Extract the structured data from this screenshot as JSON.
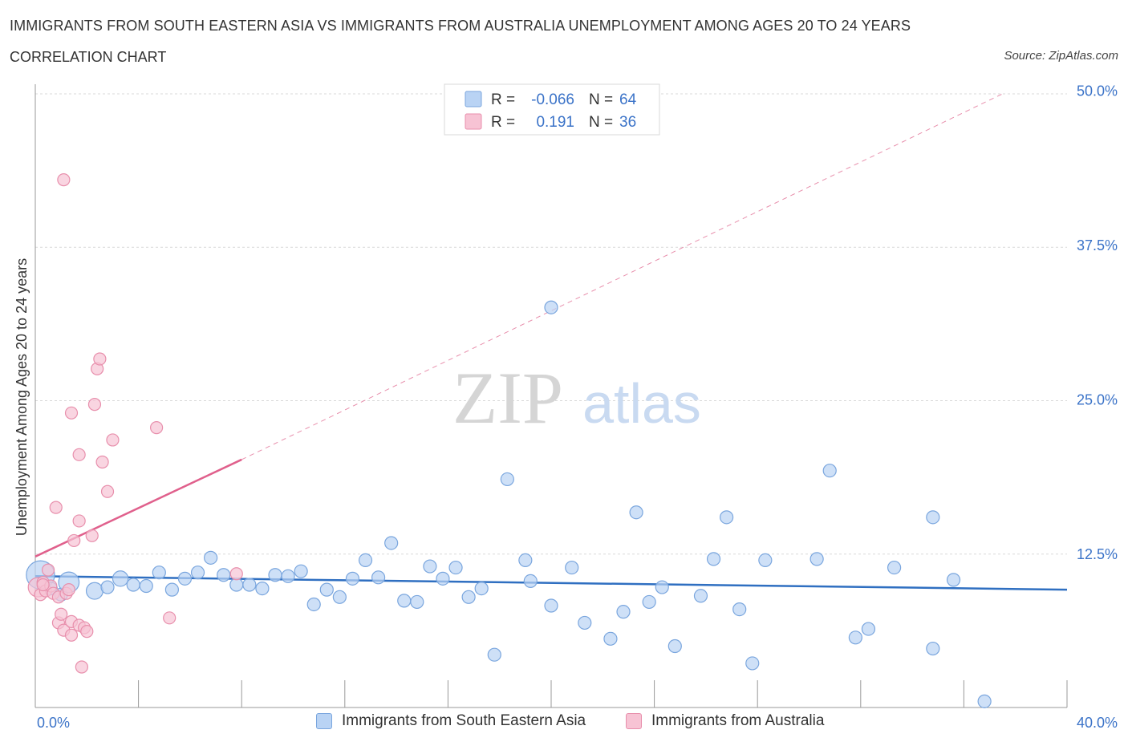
{
  "header": {
    "title": "IMMIGRANTS FROM SOUTH EASTERN ASIA VS IMMIGRANTS FROM AUSTRALIA UNEMPLOYMENT AMONG AGES 20 TO 24 YEARS",
    "subtitle": "CORRELATION CHART",
    "source": "Source: ZipAtlas.com"
  },
  "watermark": {
    "zip": "ZIP",
    "atlas": "atlas"
  },
  "stats_legend": {
    "rows": [
      {
        "r_label": "R =",
        "r_value": "-0.066",
        "n_label": "N =",
        "n_value": "64"
      },
      {
        "r_label": "R =",
        "r_value": "0.191",
        "n_label": "N =",
        "n_value": "36"
      }
    ]
  },
  "colors": {
    "blue_fill": "#b9d3f4",
    "blue_stroke": "#7aa6de",
    "blue_line": "#2f6fc1",
    "pink_fill": "#f7c3d4",
    "pink_stroke": "#e88fac",
    "pink_line": "#e0608c",
    "accent_text": "#3b73c8",
    "grid": "#d9d9d9",
    "axis": "#999999"
  },
  "chart_data": {
    "type": "scatter",
    "title": "IMMIGRANTS FROM SOUTH EASTERN ASIA VS IMMIGRANTS FROM AUSTRALIA UNEMPLOYMENT AMONG AGES 20 TO 24 YEARS",
    "xlabel": "",
    "ylabel": "Unemployment Among Ages 20 to 24 years",
    "xlim": [
      0,
      40
    ],
    "ylim": [
      0,
      50
    ],
    "x_tick_labels": [
      "0.0%",
      "40.0%"
    ],
    "y_ticks": [
      12.5,
      25.0,
      37.5,
      50.0
    ],
    "y_tick_labels": [
      "12.5%",
      "25.0%",
      "37.5%",
      "50.0%"
    ],
    "grid": true,
    "series": [
      {
        "name": "Immigrants from South Eastern Asia",
        "color": "#b9d3f4",
        "R": -0.066,
        "N": 64,
        "trend": {
          "x": [
            0,
            40
          ],
          "y": [
            10.7,
            9.6
          ],
          "dashed_extension": false
        },
        "points": [
          {
            "x": 0.2,
            "y": 10.8,
            "s": 2.2
          },
          {
            "x": 0.6,
            "y": 9.7
          },
          {
            "x": 1.0,
            "y": 9.2
          },
          {
            "x": 1.3,
            "y": 10.2,
            "s": 1.6
          },
          {
            "x": 2.3,
            "y": 9.5,
            "s": 1.3
          },
          {
            "x": 2.8,
            "y": 9.8
          },
          {
            "x": 3.3,
            "y": 10.5,
            "s": 1.2
          },
          {
            "x": 3.8,
            "y": 10.0
          },
          {
            "x": 4.3,
            "y": 9.9
          },
          {
            "x": 4.8,
            "y": 11.0
          },
          {
            "x": 5.3,
            "y": 9.6
          },
          {
            "x": 5.8,
            "y": 10.5
          },
          {
            "x": 6.3,
            "y": 11.0
          },
          {
            "x": 6.8,
            "y": 12.2
          },
          {
            "x": 7.3,
            "y": 10.8
          },
          {
            "x": 7.8,
            "y": 10.0
          },
          {
            "x": 8.3,
            "y": 10.0
          },
          {
            "x": 8.8,
            "y": 9.7
          },
          {
            "x": 9.3,
            "y": 10.8
          },
          {
            "x": 9.8,
            "y": 10.7
          },
          {
            "x": 10.3,
            "y": 11.1
          },
          {
            "x": 10.8,
            "y": 8.4
          },
          {
            "x": 11.3,
            "y": 9.6
          },
          {
            "x": 11.8,
            "y": 9.0
          },
          {
            "x": 12.3,
            "y": 10.5
          },
          {
            "x": 12.8,
            "y": 12.0
          },
          {
            "x": 13.3,
            "y": 10.6
          },
          {
            "x": 13.8,
            "y": 13.4
          },
          {
            "x": 14.3,
            "y": 8.7
          },
          {
            "x": 14.8,
            "y": 8.6
          },
          {
            "x": 15.3,
            "y": 11.5
          },
          {
            "x": 15.8,
            "y": 10.5
          },
          {
            "x": 16.3,
            "y": 11.4
          },
          {
            "x": 16.8,
            "y": 9.0
          },
          {
            "x": 17.3,
            "y": 9.7
          },
          {
            "x": 17.8,
            "y": 4.3
          },
          {
            "x": 18.3,
            "y": 18.6
          },
          {
            "x": 19.0,
            "y": 12.0
          },
          {
            "x": 19.2,
            "y": 10.3
          },
          {
            "x": 20.0,
            "y": 32.6
          },
          {
            "x": 20.0,
            "y": 8.3
          },
          {
            "x": 20.8,
            "y": 11.4
          },
          {
            "x": 21.3,
            "y": 6.9
          },
          {
            "x": 22.3,
            "y": 5.6
          },
          {
            "x": 22.8,
            "y": 7.8
          },
          {
            "x": 23.3,
            "y": 15.9
          },
          {
            "x": 23.8,
            "y": 8.6
          },
          {
            "x": 24.3,
            "y": 9.8
          },
          {
            "x": 24.8,
            "y": 5.0
          },
          {
            "x": 25.8,
            "y": 9.1
          },
          {
            "x": 26.3,
            "y": 12.1
          },
          {
            "x": 26.8,
            "y": 15.5
          },
          {
            "x": 27.3,
            "y": 8.0
          },
          {
            "x": 27.8,
            "y": 3.6
          },
          {
            "x": 28.3,
            "y": 12.0
          },
          {
            "x": 30.3,
            "y": 12.1
          },
          {
            "x": 30.8,
            "y": 19.3
          },
          {
            "x": 31.8,
            "y": 5.7
          },
          {
            "x": 32.3,
            "y": 6.4
          },
          {
            "x": 33.3,
            "y": 11.4
          },
          {
            "x": 34.8,
            "y": 4.8
          },
          {
            "x": 34.8,
            "y": 15.5
          },
          {
            "x": 35.6,
            "y": 10.4
          },
          {
            "x": 36.8,
            "y": 0.5
          }
        ]
      },
      {
        "name": "Immigrants from Australia",
        "color": "#f7c3d4",
        "R": 0.191,
        "N": 36,
        "trend": {
          "x": [
            0,
            8
          ],
          "y": [
            12.3,
            20.2
          ],
          "dashed_extension_to": [
            37.5,
            50.0
          ]
        },
        "points": [
          {
            "x": 0.1,
            "y": 9.8,
            "s": 1.6
          },
          {
            "x": 0.2,
            "y": 9.2
          },
          {
            "x": 0.3,
            "y": 10.2
          },
          {
            "x": 0.4,
            "y": 9.5
          },
          {
            "x": 0.5,
            "y": 11.2
          },
          {
            "x": 0.6,
            "y": 9.9
          },
          {
            "x": 0.7,
            "y": 9.3
          },
          {
            "x": 0.8,
            "y": 16.3
          },
          {
            "x": 0.9,
            "y": 9.0
          },
          {
            "x": 0.9,
            "y": 6.9
          },
          {
            "x": 1.0,
            "y": 7.6
          },
          {
            "x": 1.1,
            "y": 6.3
          },
          {
            "x": 1.1,
            "y": 43.0
          },
          {
            "x": 1.2,
            "y": 9.3
          },
          {
            "x": 1.3,
            "y": 9.6
          },
          {
            "x": 1.4,
            "y": 24.0
          },
          {
            "x": 1.4,
            "y": 7.0
          },
          {
            "x": 1.4,
            "y": 5.9
          },
          {
            "x": 1.5,
            "y": 13.6
          },
          {
            "x": 1.7,
            "y": 15.2
          },
          {
            "x": 1.7,
            "y": 20.6
          },
          {
            "x": 1.7,
            "y": 6.7
          },
          {
            "x": 1.8,
            "y": 3.3
          },
          {
            "x": 1.9,
            "y": 6.5
          },
          {
            "x": 2.0,
            "y": 6.2
          },
          {
            "x": 2.2,
            "y": 14.0
          },
          {
            "x": 2.3,
            "y": 24.7
          },
          {
            "x": 2.4,
            "y": 27.6
          },
          {
            "x": 2.5,
            "y": 28.4
          },
          {
            "x": 2.6,
            "y": 20.0
          },
          {
            "x": 2.8,
            "y": 17.6
          },
          {
            "x": 3.0,
            "y": 21.8
          },
          {
            "x": 4.7,
            "y": 22.8
          },
          {
            "x": 5.2,
            "y": 7.3
          },
          {
            "x": 7.8,
            "y": 10.9
          },
          {
            "x": 0.3,
            "y": 10.0
          }
        ]
      }
    ]
  },
  "bottom_legend": {
    "items": [
      {
        "label": "Immigrants from South Eastern Asia"
      },
      {
        "label": "Immigrants from Australia"
      }
    ]
  }
}
